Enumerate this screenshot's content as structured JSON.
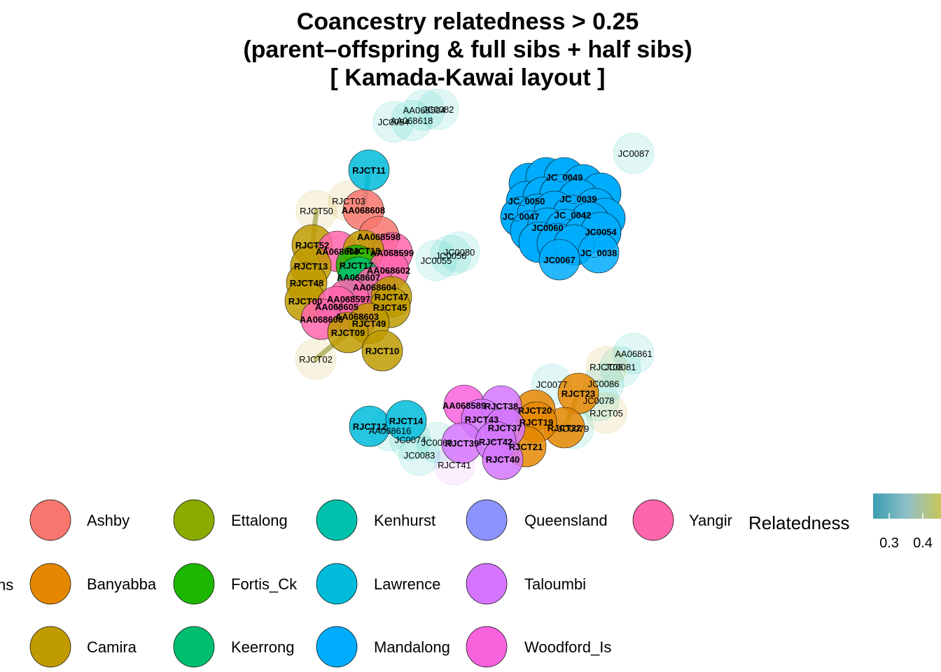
{
  "chart_data": {
    "type": "network",
    "title_lines": [
      "Coancestry relatedness > 0.25",
      "(parent–offspring & full sibs + half sibs)",
      "[ Kamada-Kawai layout ]"
    ],
    "edge_legend": {
      "title": "Relatedness",
      "ticks": [
        "0.3",
        "0.4"
      ],
      "colors": [
        "#3a9db0",
        "#c9c65a"
      ]
    },
    "node_legend": {
      "title_fragment": "ns",
      "populations": [
        {
          "name": "Ashby",
          "color": "#F8766D"
        },
        {
          "name": "Banyabba",
          "color": "#E58700"
        },
        {
          "name": "Camira",
          "color": "#C09B00"
        },
        {
          "name": "Ettalong",
          "color": "#8AAB00"
        },
        {
          "name": "Fortis_Ck",
          "color": "#1DB600"
        },
        {
          "name": "Keerrong",
          "color": "#00BE70"
        },
        {
          "name": "Kenhurst",
          "color": "#00C1AB"
        },
        {
          "name": "Lawrence",
          "color": "#00BBDA"
        },
        {
          "name": "Mandalong",
          "color": "#00ACFC"
        },
        {
          "name": "Queensland",
          "color": "#8B93FF"
        },
        {
          "name": "Taloumbi",
          "color": "#D575FE"
        },
        {
          "name": "Woodford_Is",
          "color": "#F962DD"
        },
        {
          "name": "Yangir",
          "color": "#FF65AC"
        }
      ]
    },
    "nodes": [
      {
        "id": "JC0082",
        "pop": "Kenhurst",
        "faded": true
      },
      {
        "id": "AA068504",
        "pop": "Kenhurst",
        "faded": true
      },
      {
        "id": "AA068618",
        "pop": "Kenhurst",
        "faded": true
      },
      {
        "id": "JC0084",
        "pop": "Kenhurst",
        "faded": true
      },
      {
        "id": "JC0087",
        "pop": "Kenhurst",
        "faded": true
      },
      {
        "id": "RJCT11",
        "pop": "Lawrence",
        "faded": false
      },
      {
        "id": "RJCT03",
        "pop": "Camira",
        "faded": true
      },
      {
        "id": "AA068608",
        "pop": "Ashby",
        "faded": false
      },
      {
        "id": "RJCT50",
        "pop": "Camira",
        "faded": true
      },
      {
        "id": "RJCT52",
        "pop": "Camira",
        "faded": false
      },
      {
        "id": "AA068598",
        "pop": "Ashby",
        "faded": false
      },
      {
        "id": "AA068599",
        "pop": "Yangir",
        "faded": false
      },
      {
        "id": "AA068600",
        "pop": "Yangir",
        "faded": false
      },
      {
        "id": "RJCT18",
        "pop": "Camira",
        "faded": false
      },
      {
        "id": "RJCT17",
        "pop": "Fortis_Ck",
        "faded": false
      },
      {
        "id": "RJCT13",
        "pop": "Camira",
        "faded": false
      },
      {
        "id": "AA068602",
        "pop": "Yangir",
        "faded": false
      },
      {
        "id": "AA068607",
        "pop": "Keerrong",
        "faded": false
      },
      {
        "id": "RJCT48",
        "pop": "Camira",
        "faded": false
      },
      {
        "id": "AA068604",
        "pop": "Yangir",
        "faded": false
      },
      {
        "id": "RJCT47",
        "pop": "Camira",
        "faded": false
      },
      {
        "id": "RJCT00",
        "pop": "Camira",
        "faded": false
      },
      {
        "id": "AA068597",
        "pop": "Yangir",
        "faded": false
      },
      {
        "id": "RJCT45",
        "pop": "Camira",
        "faded": false
      },
      {
        "id": "AA068605",
        "pop": "Yangir",
        "faded": false
      },
      {
        "id": "AA068603",
        "pop": "Yangir",
        "faded": false
      },
      {
        "id": "RJCT49",
        "pop": "Camira",
        "faded": false
      },
      {
        "id": "AA068606",
        "pop": "Yangir",
        "faded": false
      },
      {
        "id": "RJCT09",
        "pop": "Camira",
        "faded": false
      },
      {
        "id": "RJCT10",
        "pop": "Camira",
        "faded": false
      },
      {
        "id": "RJCT02",
        "pop": "Camira",
        "faded": true
      },
      {
        "id": "JC0080",
        "pop": "Kenhurst",
        "faded": true
      },
      {
        "id": "JC0056",
        "pop": "Kenhurst",
        "faded": true
      },
      {
        "id": "JC0055",
        "pop": "Kenhurst",
        "faded": true
      },
      {
        "id": "JC_0038",
        "pop": "Mandalong",
        "faded": false
      },
      {
        "id": "JC0067",
        "pop": "Mandalong",
        "faded": false
      },
      {
        "id": "AA06861",
        "pop": "Kenhurst",
        "faded": true
      },
      {
        "id": "JC0081",
        "pop": "Kenhurst",
        "faded": true
      },
      {
        "id": "RJCT08",
        "pop": "Camira",
        "faded": true
      },
      {
        "id": "JC0077",
        "pop": "Kenhurst",
        "faded": true
      },
      {
        "id": "JC0086",
        "pop": "Kenhurst",
        "faded": true
      },
      {
        "id": "RJCT23",
        "pop": "Banyabba",
        "faded": false
      },
      {
        "id": "JC0078",
        "pop": "Kenhurst",
        "faded": true
      },
      {
        "id": "RJCT05",
        "pop": "Camira",
        "faded": true
      },
      {
        "id": "JC0079",
        "pop": "Kenhurst",
        "faded": true
      },
      {
        "id": "RJCT22",
        "pop": "Banyabba",
        "faded": false
      },
      {
        "id": "RJCT20",
        "pop": "Banyabba",
        "faded": false
      },
      {
        "id": "RJCT19",
        "pop": "Banyabba",
        "faded": false
      },
      {
        "id": "RJCT21",
        "pop": "Banyabba",
        "faded": false
      },
      {
        "id": "AA068589",
        "pop": "Woodford_Is",
        "faded": false
      },
      {
        "id": "RJCT38",
        "pop": "Taloumbi",
        "faded": false
      },
      {
        "id": "RJCT43",
        "pop": "Taloumbi",
        "faded": false
      },
      {
        "id": "RJCT37",
        "pop": "Taloumbi",
        "faded": false
      },
      {
        "id": "RJCT39",
        "pop": "Taloumbi",
        "faded": false
      },
      {
        "id": "RJCT42",
        "pop": "Taloumbi",
        "faded": false
      },
      {
        "id": "RJCT40",
        "pop": "Taloumbi",
        "faded": false
      },
      {
        "id": "RJCT12",
        "pop": "Lawrence",
        "faded": false
      },
      {
        "id": "RJCT14",
        "pop": "Lawrence",
        "faded": false
      },
      {
        "id": "AA068616",
        "pop": "Kenhurst",
        "faded": true
      },
      {
        "id": "JC0074",
        "pop": "Kenhurst",
        "faded": true
      },
      {
        "id": "JC0083",
        "pop": "Kenhurst",
        "faded": true
      },
      {
        "id": "JC0069",
        "pop": "Kenhurst",
        "faded": true
      },
      {
        "id": "RJCT41",
        "pop": "Taloumbi",
        "faded": true
      }
    ]
  }
}
